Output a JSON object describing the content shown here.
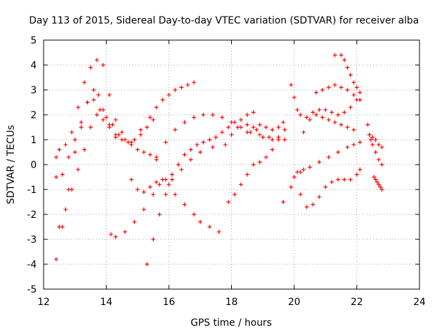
{
  "chart_data": {
    "type": "scatter",
    "title": "Day 113 of 2015, Sidereal Day-to-day VTEC variation (SDTVAR) for receiver alba",
    "xlabel": "GPS time / hours",
    "ylabel": "SDTVAR / TECUs",
    "xlim": [
      12,
      24
    ],
    "ylim": [
      -5,
      5
    ],
    "xticks": [
      12,
      14,
      16,
      18,
      20,
      22,
      24
    ],
    "yticks": [
      -5,
      -4,
      -3,
      -2,
      -1,
      0,
      1,
      2,
      3,
      4,
      5
    ],
    "grid": true,
    "marker": "plus",
    "color": "#ff0000",
    "series": [
      {
        "x": [
          12.4,
          12.6,
          12.8,
          13.0,
          13.2,
          13.4,
          13.6,
          13.75,
          13.9,
          14.1,
          14.3
        ],
        "y": [
          -3.8,
          -2.5,
          -1.0,
          0.5,
          1.5,
          2.5,
          3.0,
          2.8,
          2.2,
          1.6,
          1.1
        ]
      },
      {
        "x": [
          12.4,
          12.5,
          12.7,
          12.9,
          13.1,
          13.3,
          13.5,
          13.7,
          13.9,
          14.1,
          14.3,
          14.5
        ],
        "y": [
          0.3,
          0.6,
          0.8,
          1.3,
          2.3,
          3.3,
          3.9,
          4.2,
          4.0,
          2.8,
          1.8,
          1.3
        ]
      },
      {
        "x": [
          12.4,
          12.6,
          12.8,
          13.0,
          13.2,
          13.4,
          13.6,
          13.8,
          14.0,
          14.2,
          14.4,
          14.6,
          14.8,
          15.0,
          15.2,
          15.4,
          15.6
        ],
        "y": [
          -0.5,
          -0.4,
          0.3,
          1.0,
          1.7,
          2.5,
          2.6,
          2.2,
          1.9,
          1.6,
          1.2,
          1.0,
          0.8,
          0.6,
          0.5,
          0.4,
          0.3
        ]
      },
      {
        "x": [
          12.5,
          12.7,
          12.9,
          13.1,
          13.3,
          13.5,
          13.7,
          13.9,
          14.1,
          14.3,
          14.5,
          14.7,
          14.9,
          15.1,
          15.3,
          15.5
        ],
        "y": [
          -2.5,
          -1.8,
          -1.0,
          -0.2,
          0.6,
          1.5,
          2.0,
          1.8,
          1.5,
          1.2,
          1.0,
          0.9,
          1.0,
          1.2,
          1.5,
          1.8
        ]
      },
      {
        "x": [
          14.15,
          14.3,
          14.6,
          14.9,
          15.2,
          15.5,
          15.7,
          15.9,
          16.1,
          16.4,
          16.7,
          17.0,
          17.4,
          17.8,
          18.0,
          18.2,
          18.5,
          18.8,
          19.0,
          19.3
        ],
        "y": [
          -2.8,
          -2.9,
          -2.7,
          -2.3,
          -1.8,
          -1.2,
          -0.8,
          -0.6,
          -0.4,
          -0.2,
          0.2,
          0.5,
          0.7,
          0.8,
          1.2,
          1.5,
          1.6,
          1.4,
          1.1,
          1.0
        ]
      },
      {
        "x": [
          14.8,
          15.0,
          15.2,
          15.4,
          15.6,
          15.8,
          16.0,
          16.2,
          16.5,
          16.8,
          17.0,
          17.3,
          17.6
        ],
        "y": [
          -0.6,
          -1.0,
          -1.1,
          -0.9,
          -0.7,
          -0.6,
          -0.8,
          -1.2,
          -1.6,
          -2.0,
          -2.3,
          -2.5,
          -2.7
        ]
      },
      {
        "x": [
          15.3,
          15.5,
          15.7,
          15.9,
          16.1,
          16.3,
          16.5,
          16.7,
          16.9,
          17.1,
          17.3,
          17.5,
          17.7,
          17.9,
          18.1,
          18.3,
          18.5,
          18.7
        ],
        "y": [
          -4.0,
          -3.0,
          -2.0,
          -1.2,
          -0.6,
          0.0,
          0.4,
          0.6,
          0.8,
          0.9,
          1.0,
          1.1,
          1.3,
          1.5,
          1.7,
          1.8,
          2.0,
          2.1
        ]
      },
      {
        "x": [
          14.8,
          15.1,
          15.4,
          15.6,
          15.8,
          16.0,
          16.2,
          16.4,
          16.6,
          16.8
        ],
        "y": [
          0.9,
          1.4,
          1.9,
          2.3,
          2.6,
          2.8,
          3.0,
          3.1,
          3.2,
          3.3
        ]
      },
      {
        "x": [
          15.6,
          15.9,
          16.2,
          16.5,
          16.8,
          17.1,
          17.4,
          17.7,
          18.0,
          18.3,
          18.6,
          18.9,
          19.2,
          19.5,
          19.7
        ],
        "y": [
          0.2,
          0.9,
          1.4,
          1.7,
          1.9,
          2.0,
          2.0,
          1.9,
          1.7,
          1.5,
          1.3,
          1.2,
          1.1,
          1.1,
          1.0
        ]
      },
      {
        "x": [
          17.9,
          18.1,
          18.3,
          18.5,
          18.7,
          18.9,
          19.1,
          19.3,
          19.5,
          19.7
        ],
        "y": [
          -1.5,
          -1.2,
          -0.8,
          -0.4,
          0.0,
          0.1,
          0.3,
          0.6,
          1.0,
          1.4
        ]
      },
      {
        "x": [
          18.5,
          18.7,
          18.9,
          19.1,
          19.3,
          19.5,
          19.65
        ],
        "y": [
          1.3,
          1.5,
          1.6,
          1.5,
          1.4,
          1.5,
          1.7
        ]
      },
      {
        "x": [
          19.65
        ],
        "y": [
          -1.5
        ]
      },
      {
        "x": [
          19.9,
          20.0,
          20.1,
          20.2,
          20.3,
          20.5,
          20.8,
          21.1,
          21.4,
          21.7,
          21.9,
          22.1
        ],
        "y": [
          -0.9,
          -0.5,
          -0.3,
          -0.3,
          -0.2,
          -0.1,
          0.1,
          0.3,
          0.5,
          0.7,
          0.8,
          0.9
        ]
      },
      {
        "x": [
          19.9,
          20.0,
          20.1,
          20.2,
          20.4,
          20.6,
          20.8,
          21.0,
          21.2,
          21.4,
          21.6,
          21.8,
          22.0
        ],
        "y": [
          3.2,
          2.7,
          2.2,
          2.0,
          1.9,
          2.1,
          2.2,
          2.2,
          2.1,
          2.0,
          2.1,
          2.3,
          2.6
        ]
      },
      {
        "x": [
          20.2,
          20.4,
          20.6,
          20.8,
          21.0,
          21.2,
          21.4,
          21.6,
          21.8,
          22.0,
          22.1
        ],
        "y": [
          -1.2,
          -1.7,
          -1.6,
          -1.3,
          -0.9,
          -0.7,
          -0.6,
          -0.6,
          -0.6,
          -0.4,
          -0.2
        ]
      },
      {
        "x": [
          20.3,
          20.5,
          20.7,
          20.9,
          21.1,
          21.3,
          21.5,
          21.7,
          21.9
        ],
        "y": [
          1.3,
          1.8,
          2.0,
          1.9,
          1.8,
          1.7,
          1.6,
          1.5,
          1.4
        ]
      },
      {
        "x": [
          20.7,
          20.9,
          21.1,
          21.3,
          21.5,
          21.7,
          21.9,
          22.1
        ],
        "y": [
          2.9,
          3.0,
          3.1,
          3.2,
          3.1,
          3.0,
          2.8,
          2.6
        ]
      },
      {
        "x": [
          21.3,
          21.5,
          21.6,
          21.7,
          21.8,
          21.9,
          22.0,
          22.1
        ],
        "y": [
          4.4,
          4.4,
          4.2,
          3.9,
          3.6,
          3.3,
          3.1,
          2.9
        ]
      },
      {
        "x": [
          22.35,
          22.4,
          22.45,
          22.5,
          22.6,
          22.7,
          22.8
        ],
        "y": [
          1.6,
          1.2,
          1.0,
          0.8,
          0.5,
          0.2,
          0.0
        ]
      },
      {
        "x": [
          22.4,
          22.5,
          22.6,
          22.7,
          22.8
        ],
        "y": [
          1.2,
          1.1,
          1.0,
          0.8,
          0.7
        ]
      },
      {
        "x": [
          22.55,
          22.6,
          22.65,
          22.7,
          22.75,
          22.8
        ],
        "y": [
          -0.5,
          -0.6,
          -0.7,
          -0.8,
          -0.9,
          -1.0
        ]
      }
    ]
  }
}
